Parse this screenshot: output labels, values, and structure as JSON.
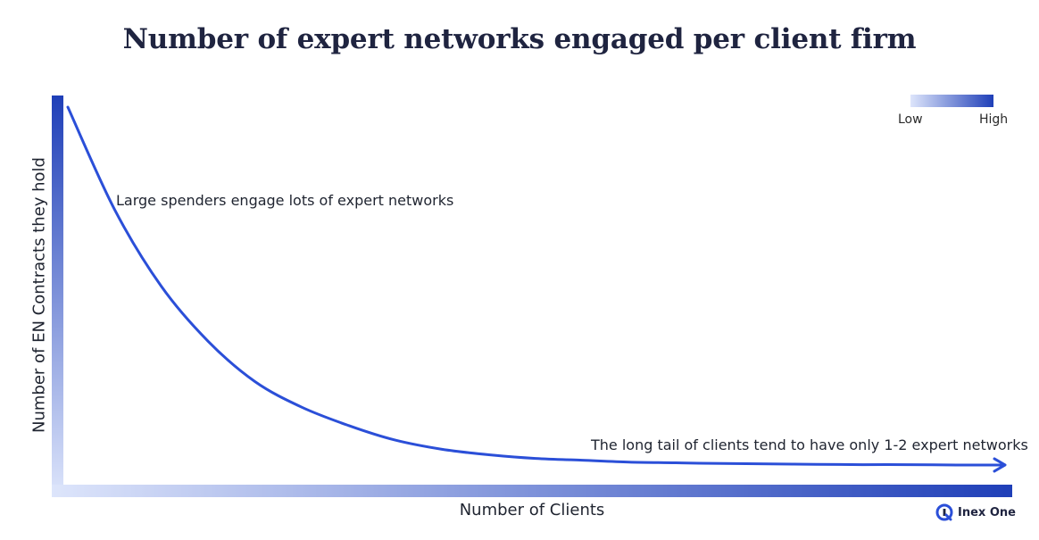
{
  "title": "Number of expert networks engaged per client firm",
  "chart_data": {
    "type": "line",
    "title": "Number of expert networks engaged per client firm",
    "xlabel": "Number of Clients",
    "ylabel": "Number of EN Contracts they hold",
    "legend": {
      "low": "Low",
      "high": "High",
      "placement": "top-right"
    },
    "annotations": [
      "Large spenders engage lots of expert networks",
      "The long tail of clients tend to have only 1-2 expert networks"
    ],
    "series": [
      {
        "x": [
          0,
          0.05,
          0.1,
          0.15,
          0.2,
          0.25,
          0.3,
          0.35,
          0.4,
          0.45,
          0.5,
          0.55,
          0.6,
          0.65,
          0.7,
          0.75,
          0.8,
          0.85,
          0.9,
          0.95,
          1.0
        ],
        "values": [
          1.0,
          0.72,
          0.51,
          0.36,
          0.25,
          0.18,
          0.13,
          0.09,
          0.065,
          0.05,
          0.04,
          0.035,
          0.03,
          0.028,
          0.026,
          0.025,
          0.024,
          0.023,
          0.023,
          0.022,
          0.022
        ]
      }
    ],
    "grid": false
  },
  "brand": {
    "name": "Inex One"
  },
  "colors": {
    "curve": "#2b4fd8",
    "axis_high": "#1f3fb8",
    "axis_low": "#dde5fb",
    "title": "#1f2440"
  }
}
